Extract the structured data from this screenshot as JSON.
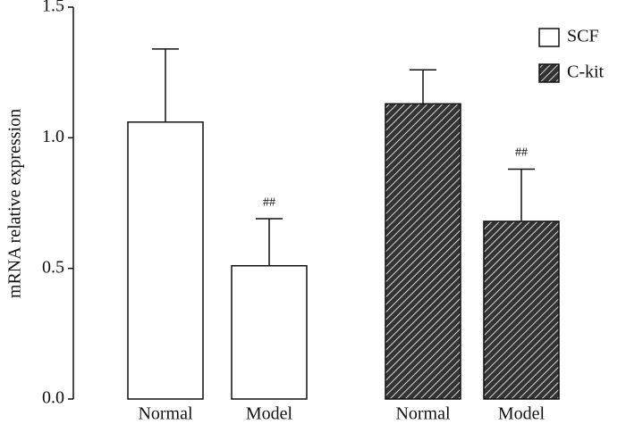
{
  "chart_data": {
    "type": "bar",
    "y_label": "mRNA relative expression",
    "categories": [
      "Normal",
      "Model",
      "Normal",
      "Model"
    ],
    "series": [
      {
        "name": "SCF",
        "color": "#ffffff",
        "hatch": false,
        "values": [
          1.06,
          0.51,
          null,
          null
        ],
        "errors": [
          0.28,
          0.18,
          null,
          null
        ],
        "annotations": [
          null,
          "##",
          null,
          null
        ]
      },
      {
        "name": "C-kit",
        "color": "#333333",
        "hatch": true,
        "values": [
          null,
          null,
          1.13,
          0.68
        ],
        "errors": [
          null,
          null,
          0.13,
          0.2
        ],
        "annotations": [
          null,
          null,
          null,
          "##"
        ]
      }
    ],
    "ylim": [
      0,
      1.5
    ],
    "yticks": [
      {
        "value": 0,
        "label": "0.0"
      },
      0.5,
      {
        "value": 1,
        "label": "1.0"
      },
      1.5
    ],
    "grid": false,
    "legend": "top-right"
  }
}
